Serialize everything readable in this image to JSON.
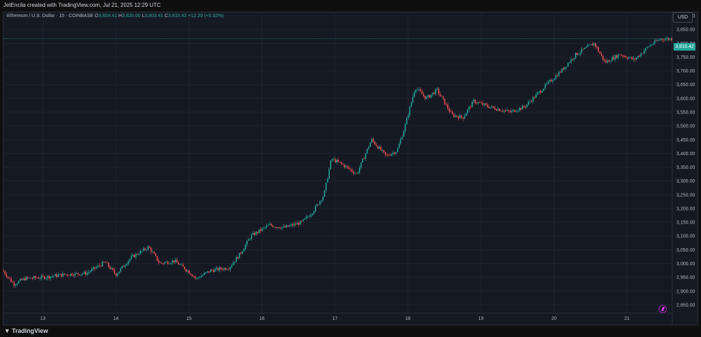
{
  "credit_line": "JetEncila created with TradingView.com, Jul 21, 2025 12:29 UTC",
  "legend": {
    "symbol": "Ethereum / U.S. Dollar · 15 · COINBASE",
    "open_label": "O",
    "open": "3,804.41",
    "high_label": "H",
    "high": "3,820.00",
    "low_label": "L",
    "low": "3,803.41",
    "close_label": "C",
    "close": "3,816.42",
    "change": "+12.20 (+0.32%)"
  },
  "currency": "USD",
  "last_price": "3,816.42",
  "footer_logo": "TradingView",
  "colors": {
    "up": "#26a69a",
    "down": "#ef5350",
    "price_line": "#26a69a",
    "grid": "#1f2330"
  },
  "chart_data": {
    "type": "candlestick",
    "title": "",
    "xlabel": "",
    "ylabel": "",
    "ylim": [
      2820,
      3915
    ],
    "x_ticks": [
      "13",
      "14",
      "15",
      "16",
      "17",
      "18",
      "19",
      "20",
      "21"
    ],
    "y_ticks": [
      "3,900.00",
      "3,850.00",
      "3,800.00",
      "3,750.00",
      "3,700.00",
      "3,650.00",
      "3,600.00",
      "3,550.00",
      "3,500.00",
      "3,450.00",
      "3,400.00",
      "3,350.00",
      "3,300.00",
      "3,250.00",
      "3,200.00",
      "3,150.00",
      "3,100.00",
      "3,050.00",
      "3,000.00",
      "2,950.00",
      "2,900.00",
      "2,850.00"
    ],
    "grid": true,
    "last_close": 3816.42,
    "close_path_days": [
      12.45,
      12.6,
      12.75,
      13.0,
      13.3,
      13.6,
      13.85,
      14.0,
      14.2,
      14.45,
      14.6,
      14.8,
      15.0,
      15.1,
      15.3,
      15.55,
      15.7,
      15.85,
      16.1,
      16.3,
      16.55,
      16.7,
      16.85,
      16.95,
      17.1,
      17.3,
      17.5,
      17.7,
      17.85,
      17.95,
      18.1,
      18.25,
      18.4,
      18.6,
      18.75,
      18.9,
      19.1,
      19.4,
      19.6,
      19.9,
      20.1,
      20.3,
      20.55,
      20.7,
      20.9,
      21.1,
      21.3,
      21.45,
      21.55
    ],
    "close_path_values": [
      2975,
      2925,
      2945,
      2950,
      2960,
      2965,
      3005,
      2960,
      3020,
      3060,
      3000,
      3010,
      2970,
      2945,
      2975,
      2985,
      3035,
      3100,
      3140,
      3130,
      3150,
      3190,
      3250,
      3380,
      3360,
      3325,
      3450,
      3390,
      3410,
      3490,
      3640,
      3600,
      3630,
      3540,
      3530,
      3590,
      3570,
      3550,
      3570,
      3650,
      3700,
      3760,
      3800,
      3730,
      3760,
      3740,
      3790,
      3815,
      3816
    ]
  }
}
